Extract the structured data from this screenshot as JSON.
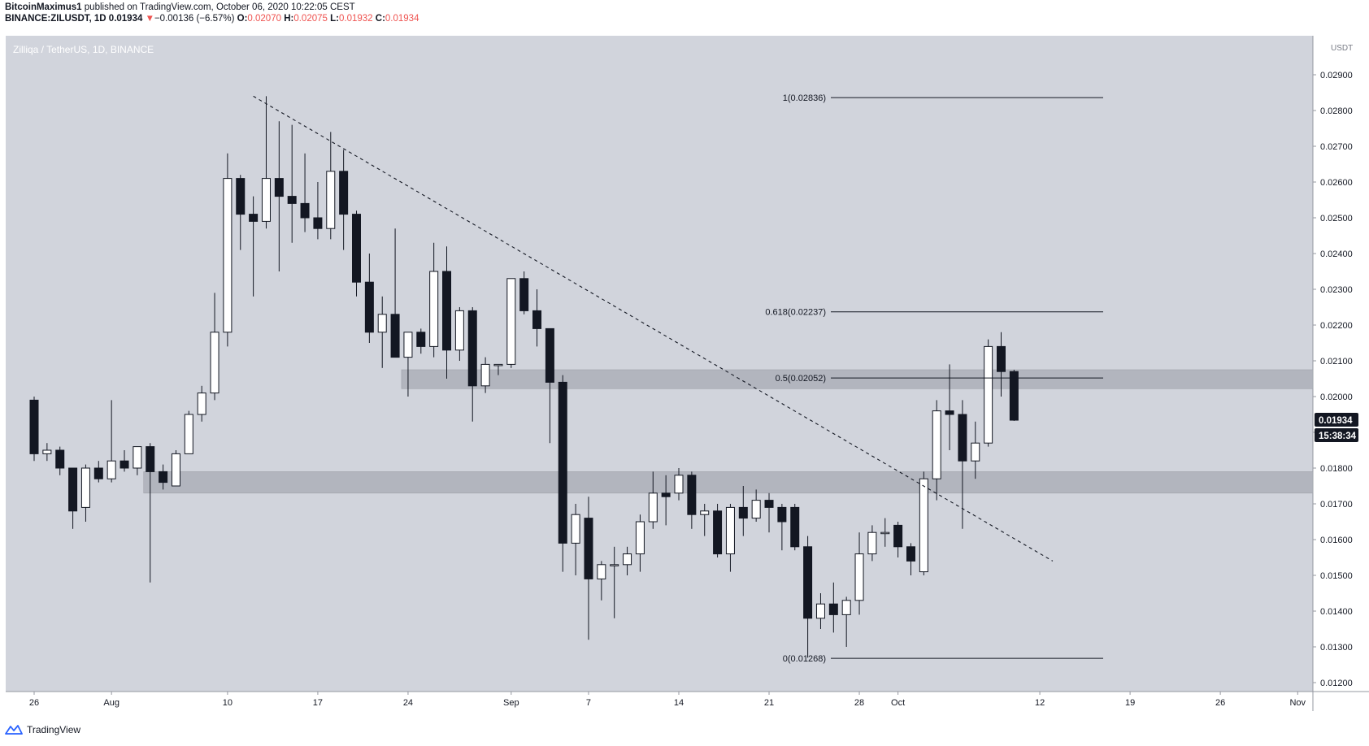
{
  "header": {
    "publisher": "BitcoinMaximus1",
    "published_text": "published on TradingView.com, October 06, 2020 10:22:05 CEST",
    "symbol": "BINANCE:ZILUSDT, 1D",
    "last": "0.01934",
    "change_arrow": "▼",
    "change": "−0.00136 (−6.57%)",
    "o_label": "O:",
    "o": "0.02070",
    "h_label": "H:",
    "h": "0.02075",
    "l_label": "L:",
    "l": "0.01932",
    "c_label": "C:",
    "c": "0.01934"
  },
  "pane_title": "Zilliqa / TetherUS, 1D, BINANCE",
  "axis_unit": "USDT",
  "price_badge": "0.01934",
  "countdown_badge": "15:38:34",
  "footer": {
    "brand": "TradingView"
  },
  "colors": {
    "pane_bg": "#d1d4dc",
    "zone": "#b2b5be",
    "candle_up": "#ffffff",
    "candle_down": "#131722",
    "badge_bg": "#131722"
  },
  "chart_data": {
    "type": "candlestick",
    "title": "Zilliqa / TetherUS, 1D, BINANCE",
    "ylim": [
      0.0118,
      0.0298
    ],
    "y_ticks": [
      "0.02900",
      "0.02800",
      "0.02700",
      "0.02600",
      "0.02500",
      "0.02400",
      "0.02300",
      "0.02200",
      "0.02100",
      "0.02000",
      "0.01900",
      "0.01800",
      "0.01700",
      "0.01600",
      "0.01500",
      "0.01400",
      "0.01300",
      "0.01200"
    ],
    "x_ticks": [
      {
        "label": "26",
        "day": 0
      },
      {
        "label": "Aug",
        "day": 6
      },
      {
        "label": "10",
        "day": 15
      },
      {
        "label": "17",
        "day": 22
      },
      {
        "label": "24",
        "day": 29
      },
      {
        "label": "Sep",
        "day": 37
      },
      {
        "label": "7",
        "day": 43
      },
      {
        "label": "14",
        "day": 50
      },
      {
        "label": "21",
        "day": 57
      },
      {
        "label": "28",
        "day": 64
      },
      {
        "label": "Oct",
        "day": 67
      },
      {
        "label": "12",
        "day": 78
      },
      {
        "label": "19",
        "day": 85
      },
      {
        "label": "26",
        "day": 92
      },
      {
        "label": "Nov",
        "day": 98
      }
    ],
    "candles": [
      {
        "o": 0.0199,
        "h": 0.02,
        "l": 0.0182,
        "c": 0.0184
      },
      {
        "o": 0.0184,
        "h": 0.0187,
        "l": 0.0182,
        "c": 0.0185
      },
      {
        "o": 0.0185,
        "h": 0.0186,
        "l": 0.0178,
        "c": 0.018
      },
      {
        "o": 0.018,
        "h": 0.018,
        "l": 0.0163,
        "c": 0.0168
      },
      {
        "o": 0.0169,
        "h": 0.0181,
        "l": 0.0165,
        "c": 0.018
      },
      {
        "o": 0.018,
        "h": 0.0182,
        "l": 0.0176,
        "c": 0.0177
      },
      {
        "o": 0.0177,
        "h": 0.0199,
        "l": 0.0176,
        "c": 0.0182
      },
      {
        "o": 0.0182,
        "h": 0.0185,
        "l": 0.0179,
        "c": 0.018
      },
      {
        "o": 0.018,
        "h": 0.0186,
        "l": 0.0178,
        "c": 0.0186
      },
      {
        "o": 0.0186,
        "h": 0.0187,
        "l": 0.0148,
        "c": 0.0179
      },
      {
        "o": 0.0179,
        "h": 0.0181,
        "l": 0.0174,
        "c": 0.0176
      },
      {
        "o": 0.0175,
        "h": 0.0185,
        "l": 0.0175,
        "c": 0.0184
      },
      {
        "o": 0.0184,
        "h": 0.0196,
        "l": 0.0184,
        "c": 0.0195
      },
      {
        "o": 0.0195,
        "h": 0.0203,
        "l": 0.0193,
        "c": 0.0201
      },
      {
        "o": 0.0201,
        "h": 0.0229,
        "l": 0.0199,
        "c": 0.0218
      },
      {
        "o": 0.0218,
        "h": 0.0268,
        "l": 0.0214,
        "c": 0.0261
      },
      {
        "o": 0.0261,
        "h": 0.0262,
        "l": 0.0241,
        "c": 0.0251
      },
      {
        "o": 0.0251,
        "h": 0.0256,
        "l": 0.0228,
        "c": 0.0249
      },
      {
        "o": 0.0249,
        "h": 0.0284,
        "l": 0.0247,
        "c": 0.0261
      },
      {
        "o": 0.0261,
        "h": 0.0277,
        "l": 0.0235,
        "c": 0.0256
      },
      {
        "o": 0.0256,
        "h": 0.0276,
        "l": 0.0243,
        "c": 0.0254
      },
      {
        "o": 0.0254,
        "h": 0.0268,
        "l": 0.0246,
        "c": 0.025
      },
      {
        "o": 0.025,
        "h": 0.026,
        "l": 0.0244,
        "c": 0.0247
      },
      {
        "o": 0.0247,
        "h": 0.0274,
        "l": 0.0244,
        "c": 0.0263
      },
      {
        "o": 0.0263,
        "h": 0.0269,
        "l": 0.0241,
        "c": 0.0251
      },
      {
        "o": 0.0251,
        "h": 0.0252,
        "l": 0.0228,
        "c": 0.0232
      },
      {
        "o": 0.0232,
        "h": 0.024,
        "l": 0.0215,
        "c": 0.0218
      },
      {
        "o": 0.0218,
        "h": 0.0228,
        "l": 0.0208,
        "c": 0.0223
      },
      {
        "o": 0.0223,
        "h": 0.0247,
        "l": 0.0212,
        "c": 0.0211
      },
      {
        "o": 0.0211,
        "h": 0.0218,
        "l": 0.02,
        "c": 0.0218
      },
      {
        "o": 0.0218,
        "h": 0.0219,
        "l": 0.0212,
        "c": 0.0214
      },
      {
        "o": 0.0214,
        "h": 0.0243,
        "l": 0.0211,
        "c": 0.0235
      },
      {
        "o": 0.0235,
        "h": 0.0242,
        "l": 0.0205,
        "c": 0.0213
      },
      {
        "o": 0.0213,
        "h": 0.0225,
        "l": 0.021,
        "c": 0.0224
      },
      {
        "o": 0.0224,
        "h": 0.0225,
        "l": 0.0193,
        "c": 0.0203
      },
      {
        "o": 0.0203,
        "h": 0.0211,
        "l": 0.0201,
        "c": 0.0209
      },
      {
        "o": 0.0209,
        "h": 0.0209,
        "l": 0.0206,
        "c": 0.0209
      },
      {
        "o": 0.0209,
        "h": 0.0233,
        "l": 0.0208,
        "c": 0.0233
      },
      {
        "o": 0.0233,
        "h": 0.0235,
        "l": 0.0223,
        "c": 0.0224
      },
      {
        "o": 0.0224,
        "h": 0.023,
        "l": 0.0214,
        "c": 0.0219
      },
      {
        "o": 0.0219,
        "h": 0.0219,
        "l": 0.0187,
        "c": 0.0204
      },
      {
        "o": 0.0204,
        "h": 0.0206,
        "l": 0.0151,
        "c": 0.0159
      },
      {
        "o": 0.0159,
        "h": 0.017,
        "l": 0.015,
        "c": 0.0167
      },
      {
        "o": 0.0166,
        "h": 0.0172,
        "l": 0.0132,
        "c": 0.0149
      },
      {
        "o": 0.0149,
        "h": 0.0154,
        "l": 0.0143,
        "c": 0.0153
      },
      {
        "o": 0.0153,
        "h": 0.0158,
        "l": 0.0138,
        "c": 0.0153
      },
      {
        "o": 0.0153,
        "h": 0.0158,
        "l": 0.015,
        "c": 0.0156
      },
      {
        "o": 0.0156,
        "h": 0.0167,
        "l": 0.0151,
        "c": 0.0165
      },
      {
        "o": 0.0165,
        "h": 0.0179,
        "l": 0.0163,
        "c": 0.0173
      },
      {
        "o": 0.0173,
        "h": 0.0178,
        "l": 0.0164,
        "c": 0.0172
      },
      {
        "o": 0.0173,
        "h": 0.018,
        "l": 0.0171,
        "c": 0.0178
      },
      {
        "o": 0.0178,
        "h": 0.0179,
        "l": 0.0163,
        "c": 0.0167
      },
      {
        "o": 0.0167,
        "h": 0.017,
        "l": 0.0161,
        "c": 0.0168
      },
      {
        "o": 0.0168,
        "h": 0.017,
        "l": 0.0155,
        "c": 0.0156
      },
      {
        "o": 0.0156,
        "h": 0.017,
        "l": 0.0151,
        "c": 0.0169
      },
      {
        "o": 0.0169,
        "h": 0.0175,
        "l": 0.0161,
        "c": 0.0166
      },
      {
        "o": 0.0166,
        "h": 0.0174,
        "l": 0.0165,
        "c": 0.0171
      },
      {
        "o": 0.0171,
        "h": 0.0173,
        "l": 0.0162,
        "c": 0.0169
      },
      {
        "o": 0.0169,
        "h": 0.017,
        "l": 0.0157,
        "c": 0.0165
      },
      {
        "o": 0.0169,
        "h": 0.017,
        "l": 0.0157,
        "c": 0.0158
      },
      {
        "o": 0.0158,
        "h": 0.0161,
        "l": 0.0127,
        "c": 0.0138
      },
      {
        "o": 0.0138,
        "h": 0.0145,
        "l": 0.0135,
        "c": 0.0142
      },
      {
        "o": 0.0142,
        "h": 0.0148,
        "l": 0.0134,
        "c": 0.0139
      },
      {
        "o": 0.0139,
        "h": 0.0144,
        "l": 0.013,
        "c": 0.0143
      },
      {
        "o": 0.0143,
        "h": 0.0162,
        "l": 0.0139,
        "c": 0.0156
      },
      {
        "o": 0.0156,
        "h": 0.0164,
        "l": 0.0154,
        "c": 0.0162
      },
      {
        "o": 0.0162,
        "h": 0.0166,
        "l": 0.0158,
        "c": 0.0162
      },
      {
        "o": 0.0164,
        "h": 0.0165,
        "l": 0.0155,
        "c": 0.0158
      },
      {
        "o": 0.0158,
        "h": 0.0159,
        "l": 0.015,
        "c": 0.0154
      },
      {
        "o": 0.0151,
        "h": 0.0179,
        "l": 0.015,
        "c": 0.0177
      },
      {
        "o": 0.0177,
        "h": 0.0199,
        "l": 0.0171,
        "c": 0.0196
      },
      {
        "o": 0.0196,
        "h": 0.0209,
        "l": 0.0185,
        "c": 0.0195
      },
      {
        "o": 0.0195,
        "h": 0.0199,
        "l": 0.0163,
        "c": 0.0182
      },
      {
        "o": 0.0182,
        "h": 0.0193,
        "l": 0.0177,
        "c": 0.0187
      },
      {
        "o": 0.0187,
        "h": 0.0216,
        "l": 0.0186,
        "c": 0.0214
      },
      {
        "o": 0.0214,
        "h": 0.0218,
        "l": 0.02,
        "c": 0.0207
      },
      {
        "o": 0.0207,
        "h": 0.02075,
        "l": 0.01932,
        "c": 0.01934
      }
    ],
    "fib_levels": [
      {
        "label": "1(0.02836)",
        "value": 0.02836
      },
      {
        "label": "0.618(0.02237)",
        "value": 0.02237
      },
      {
        "label": "0.5(0.02052)",
        "value": 0.02052
      },
      {
        "label": "0(0.01268)",
        "value": 0.01268
      }
    ],
    "zones": [
      {
        "from": 0.02022,
        "to": 0.02075,
        "start_day": 29
      },
      {
        "from": 0.0173,
        "to": 0.0179,
        "start_day": 9
      }
    ],
    "trendline": {
      "start": {
        "day": 17,
        "price": 0.0284
      },
      "end": {
        "day": 79,
        "price": 0.0154
      }
    }
  }
}
